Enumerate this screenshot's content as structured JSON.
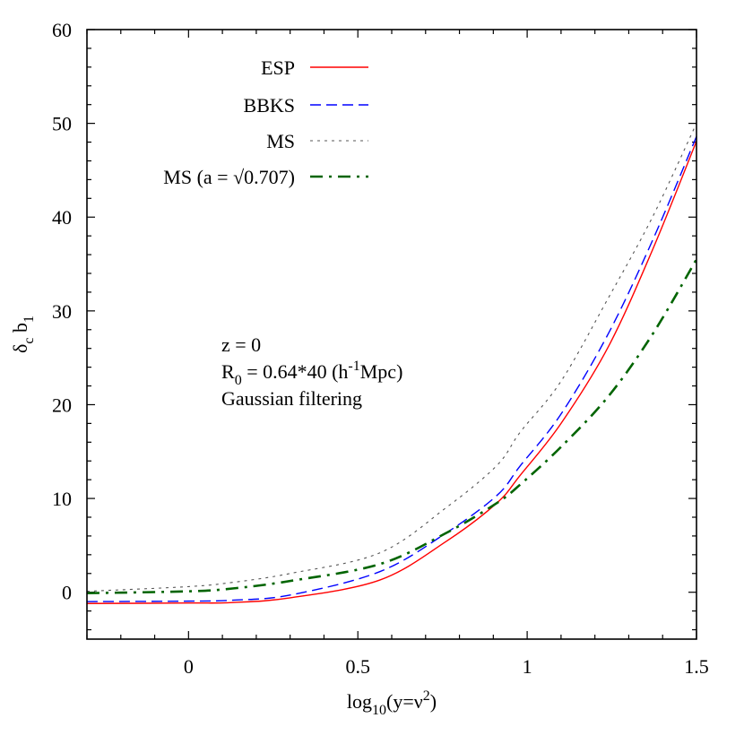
{
  "chart_data": {
    "type": "line",
    "xlabel": [
      {
        "t": "log"
      },
      {
        "t": "10",
        "sub": true
      },
      {
        "t": "(y=ν"
      },
      {
        "t": "2",
        "sup": true
      },
      {
        "t": ")"
      }
    ],
    "ylabel": [
      {
        "t": "δ"
      },
      {
        "t": "c",
        "sub": true
      },
      {
        "t": " b"
      },
      {
        "t": "1",
        "sub": true
      }
    ],
    "xlim": [
      -0.3,
      1.5
    ],
    "ylim": [
      -5,
      60
    ],
    "xticks": [
      0,
      0.5,
      1,
      1.5
    ],
    "xtick_labels": [
      "0",
      "0.5",
      "1",
      "1.5"
    ],
    "yticks": [
      0,
      10,
      20,
      30,
      40,
      50,
      60
    ],
    "ytick_labels": [
      "0",
      "10",
      "20",
      "30",
      "40",
      "50",
      "60"
    ],
    "x_minor_step": 0.1,
    "y_minor_step": 2,
    "grid": false,
    "legend_position": "top-left",
    "annotation": [
      [
        {
          "t": "z = 0"
        }
      ],
      [
        {
          "t": "R"
        },
        {
          "t": "0",
          "sub": true
        },
        {
          "t": " = 0.64*40 (h"
        },
        {
          "t": "-1",
          "sup": true
        },
        {
          "t": "Mpc)"
        }
      ],
      [
        {
          "t": "Gaussian filtering"
        }
      ]
    ],
    "x": [
      -0.3,
      0,
      0.13,
      0.3,
      0.565,
      0.76,
      0.91,
      0.98,
      1.1,
      1.24,
      1.37,
      1.5
    ],
    "series": [
      {
        "name": "ESP",
        "color": "#ff0000",
        "style": "solid",
        "values": [
          -1.2,
          -1.15,
          -1.1,
          -0.6,
          1.3,
          5.4,
          9.5,
          12.5,
          18.0,
          26.2,
          36.5,
          48.1
        ]
      },
      {
        "name": "BBKS",
        "color": "#0000ff",
        "style": "dashed",
        "values": [
          -1.0,
          -0.95,
          -0.85,
          -0.3,
          2.2,
          6.3,
          10.3,
          13.5,
          19.0,
          27.6,
          37.5,
          48.6
        ]
      },
      {
        "name": "MS",
        "color": "#555555",
        "style": "dotted",
        "values": [
          0.1,
          0.6,
          1.05,
          2.0,
          4.2,
          9.0,
          13.5,
          17.1,
          22.5,
          31.4,
          40.0,
          50.0
        ]
      },
      {
        "name": "MS (a = √0.707)",
        "color": "#006400",
        "style": "dash-dot",
        "values": [
          -0.1,
          0.1,
          0.4,
          1.2,
          3.0,
          6.3,
          9.5,
          11.5,
          15.5,
          20.9,
          27.5,
          35.5
        ]
      }
    ]
  }
}
